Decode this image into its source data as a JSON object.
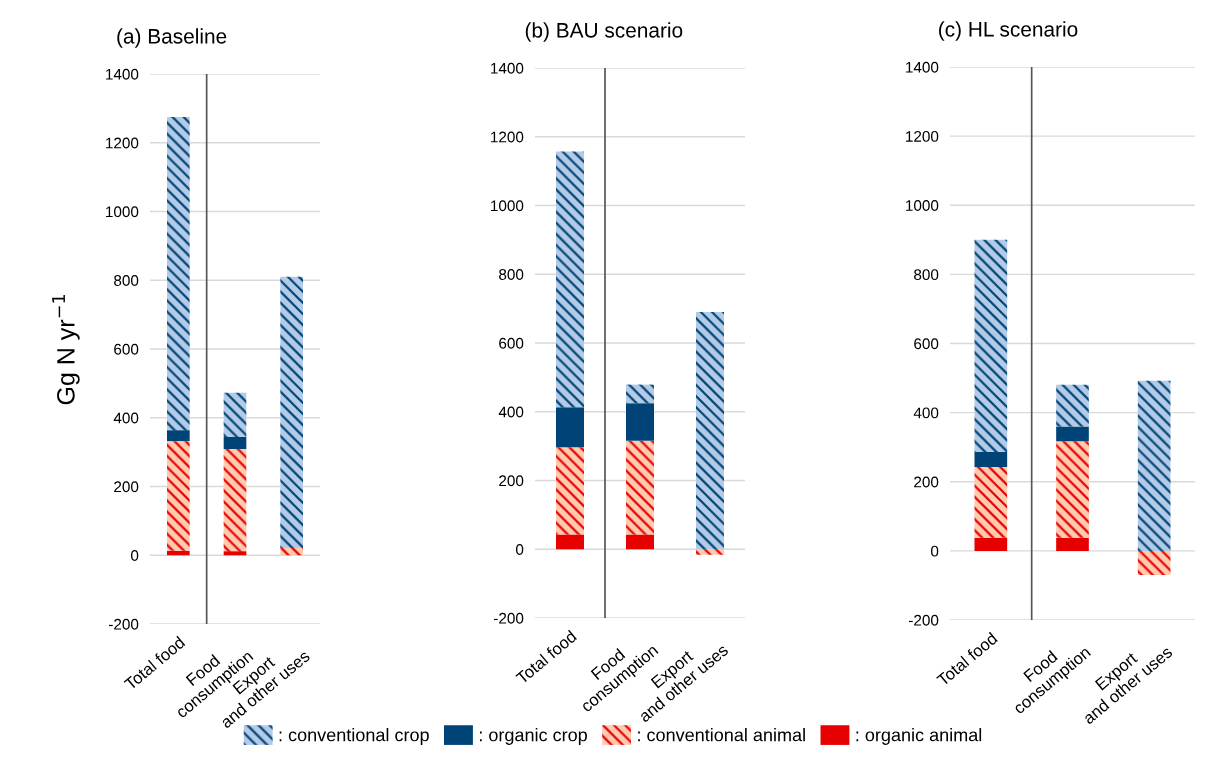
{
  "chart_data": [
    {
      "type": "bar",
      "title": "(a) Baseline",
      "ylabel": "Gg N yr$^{−1}$",
      "stacked": true,
      "categories": [
        "Total food",
        "Food\nconsumption",
        "Export\nand other uses"
      ],
      "ylim": [
        -200,
        1400
      ],
      "yticks": [
        -200,
        0,
        200,
        400,
        600,
        800,
        1000,
        1200,
        1400
      ],
      "grid": "y",
      "legend": "bottom",
      "series": [
        {
          "name": ": organic animal",
          "color": "#e60000",
          "values": [
            13,
            12,
            0
          ]
        },
        {
          "name": ": conventional animal",
          "color": "#ffcbb0",
          "values": [
            319,
            297,
            21
          ]
        },
        {
          "name": ": organic crop",
          "color": "#004477",
          "values": [
            32,
            35,
            0
          ]
        },
        {
          "name": ": conventional crop",
          "color": "#b4cbe8",
          "values": [
            911,
            129,
            789
          ]
        }
      ]
    },
    {
      "type": "bar",
      "title": "(b) BAU scenario",
      "stacked": true,
      "categories": [
        "Total food",
        "Food\nconsumption",
        "Export\nand other uses"
      ],
      "ylim": [
        -200,
        1400
      ],
      "yticks": [
        -200,
        0,
        200,
        400,
        600,
        800,
        1000,
        1200,
        1400
      ],
      "grid": "y",
      "series": [
        {
          "color": "#e60000",
          "values": [
            43,
            43,
            0
          ]
        },
        {
          "color": "#ffcbb0",
          "values": [
            254,
            273,
            -16
          ]
        },
        {
          "color": "#004477",
          "values": [
            116,
            109,
            0
          ]
        },
        {
          "color": "#b4cbe8",
          "values": [
            744,
            54,
            690
          ]
        }
      ]
    },
    {
      "type": "bar",
      "title": "(c) HL scenario",
      "stacked": true,
      "categories": [
        "Total food",
        "Food\nconsumption",
        "Export\nand other uses"
      ],
      "ylim": [
        -200,
        1400
      ],
      "yticks": [
        -200,
        0,
        200,
        400,
        600,
        800,
        1000,
        1200,
        1400
      ],
      "grid": "y",
      "series": [
        {
          "color": "#e60000",
          "values": [
            38,
            38,
            0
          ]
        },
        {
          "color": "#ffcbb0",
          "values": [
            205,
            279,
            -70
          ]
        },
        {
          "color": "#004477",
          "values": [
            43,
            43,
            0
          ]
        },
        {
          "color": "#b4cbe8",
          "values": [
            614,
            121,
            492
          ]
        }
      ]
    }
  ]
}
